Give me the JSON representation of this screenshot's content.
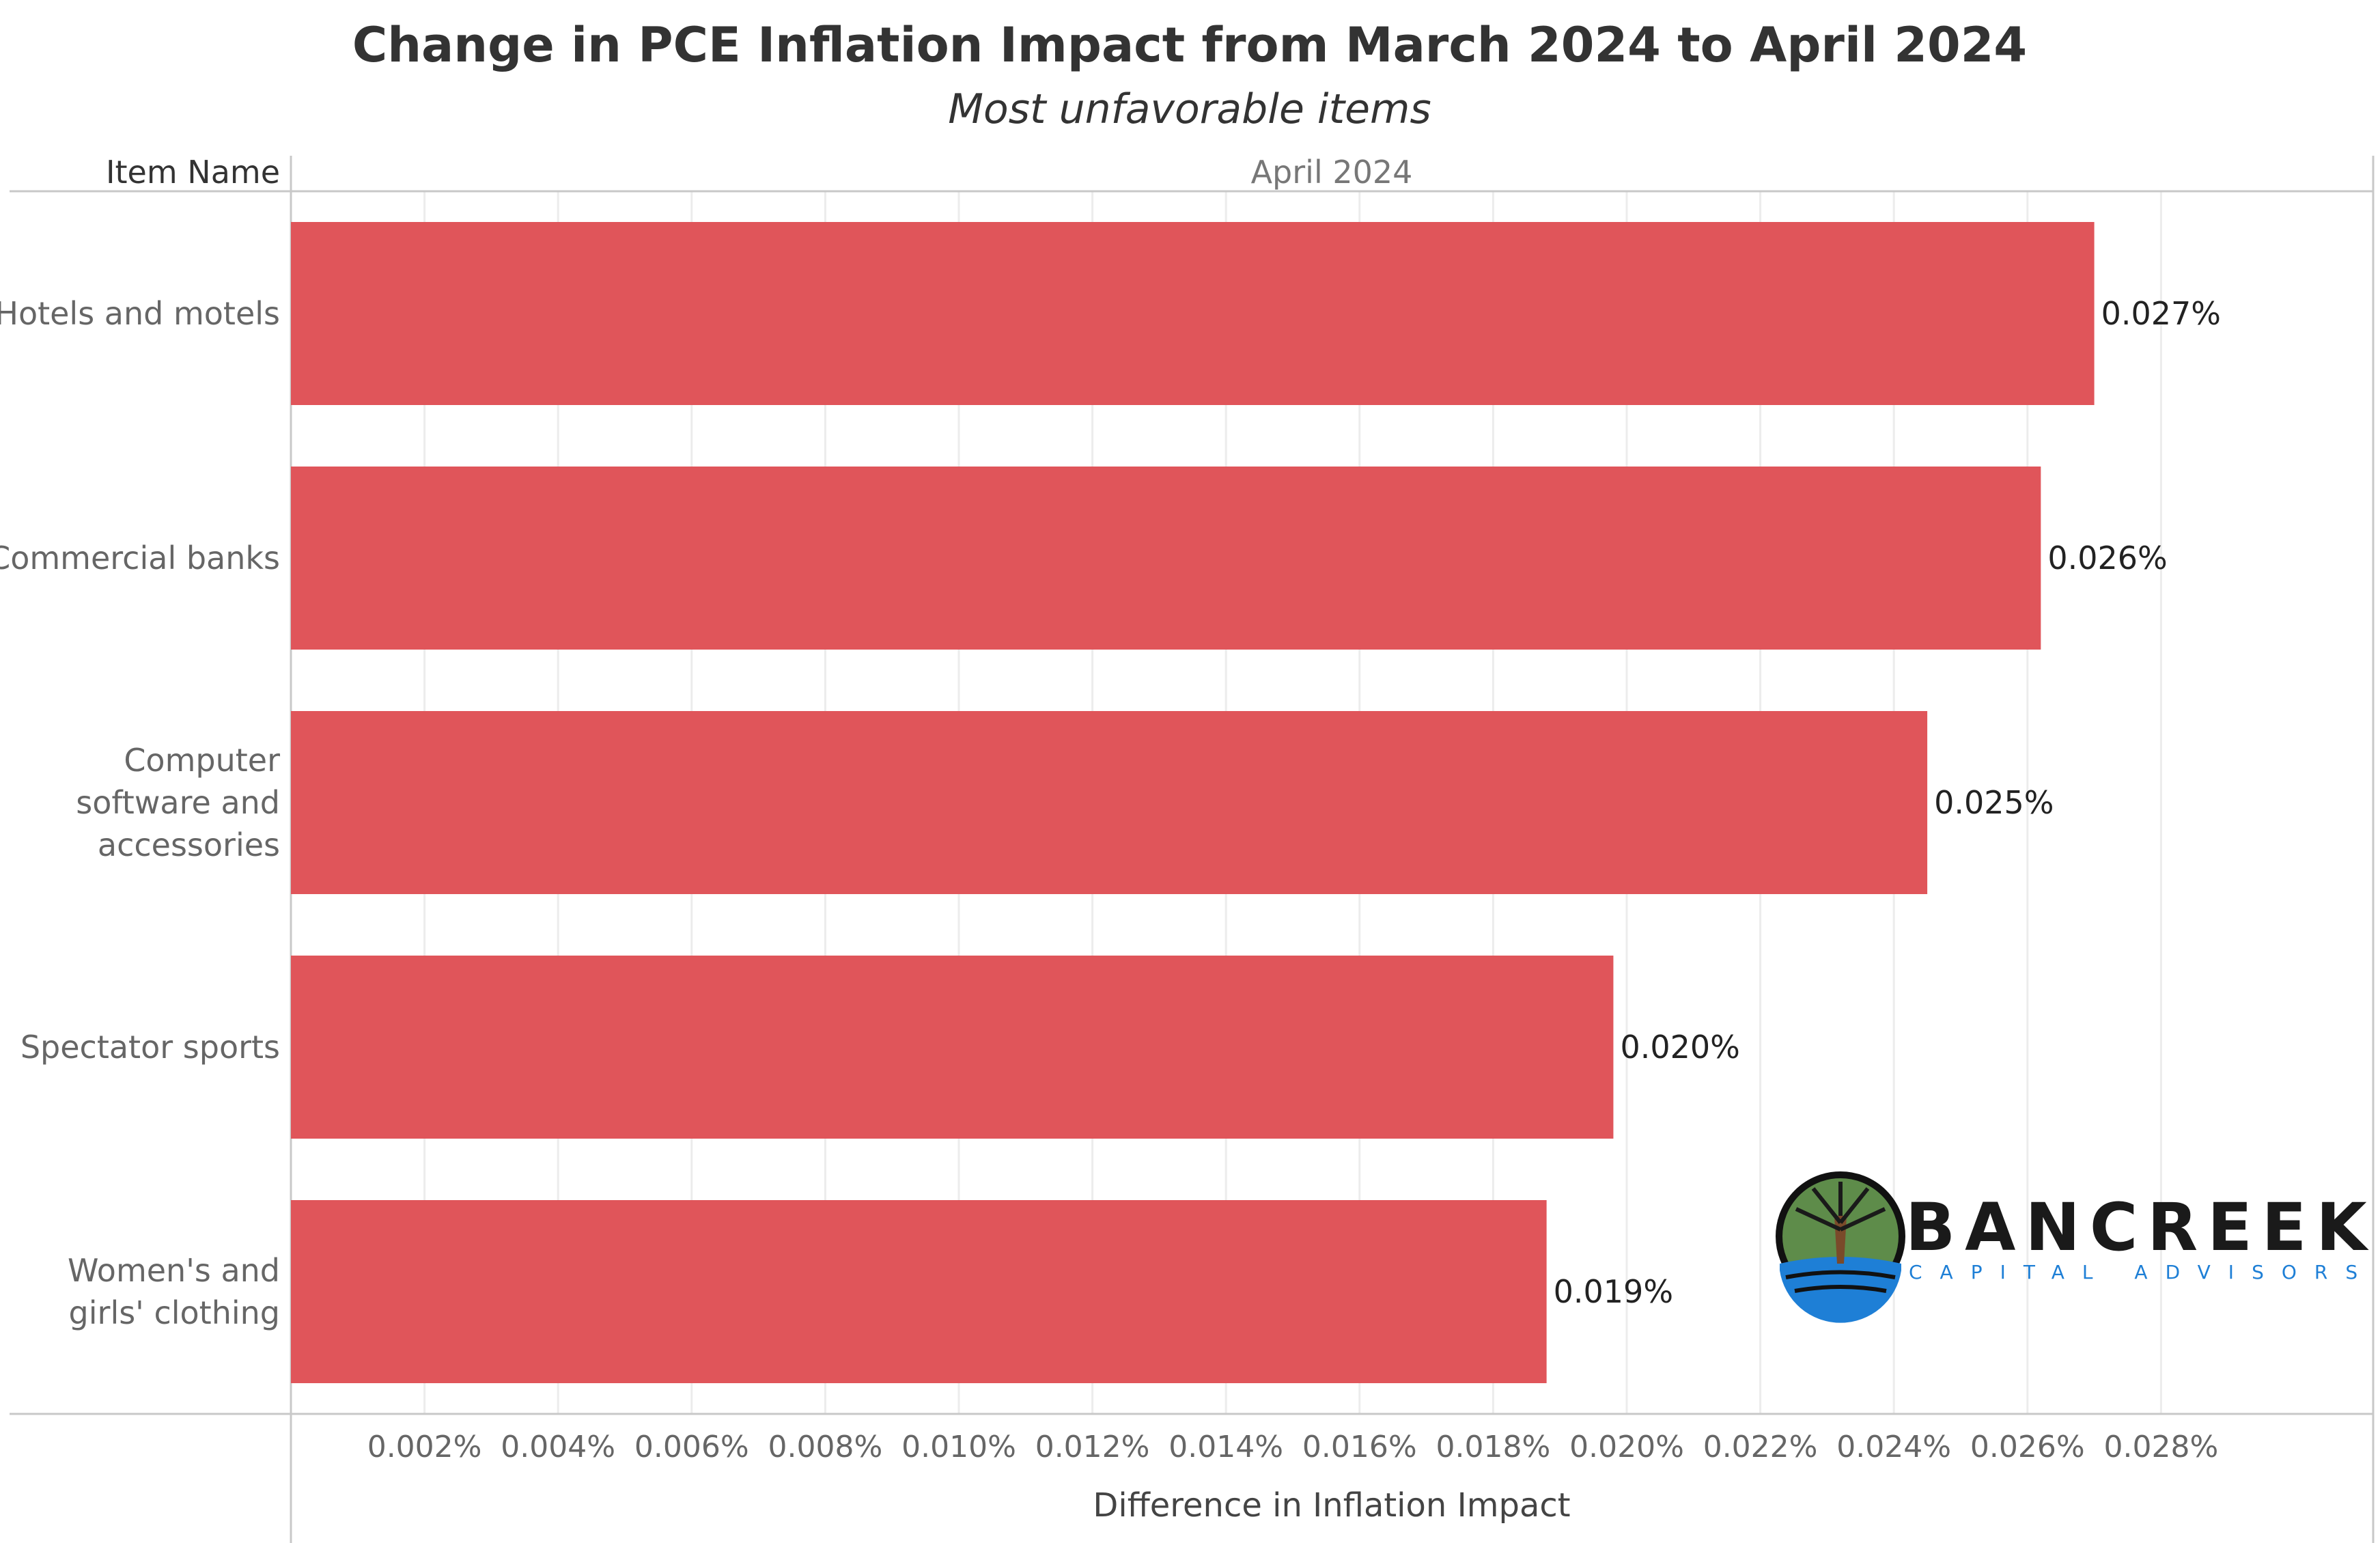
{
  "title": "Change in PCE Inflation Impact from March 2024 to April 2024",
  "subtitle": "Most unfavorable items",
  "column_header": "Item Name",
  "panel_header": "April 2024",
  "logo": {
    "name": "BANCREEK",
    "tagline": "CAPITAL ADVISORS"
  },
  "colors": {
    "bar": "#e0555a",
    "grid": "#ececec",
    "axis": "#c8c8c8"
  },
  "chart_data": {
    "type": "bar",
    "orientation": "horizontal",
    "title": "Change in PCE Inflation Impact from March 2024 to April 2024",
    "subtitle": "Most unfavorable items",
    "xlabel": "Difference in Inflation Impact",
    "ylabel": "Item Name",
    "categories": [
      [
        "Hotels and motels"
      ],
      [
        "Commercial banks"
      ],
      [
        "Computer",
        "software and",
        "accessories"
      ],
      [
        "Spectator sports"
      ],
      [
        "Women's and",
        "girls' clothing"
      ]
    ],
    "values": [
      0.027,
      0.0262,
      0.0245,
      0.0198,
      0.0188
    ],
    "data_labels": [
      "0.027%",
      "0.026%",
      "0.025%",
      "0.020%",
      "0.019%"
    ],
    "xlim": [
      0,
      0.03
    ],
    "xticks": [
      0.002,
      0.004,
      0.006,
      0.008,
      0.01,
      0.012,
      0.014,
      0.016,
      0.018,
      0.02,
      0.022,
      0.024,
      0.026,
      0.028
    ],
    "xtick_labels": [
      "0.002%",
      "0.004%",
      "0.006%",
      "0.008%",
      "0.010%",
      "0.012%",
      "0.014%",
      "0.016%",
      "0.018%",
      "0.020%",
      "0.022%",
      "0.024%",
      "0.026%",
      "0.028%"
    ],
    "grid": true
  }
}
